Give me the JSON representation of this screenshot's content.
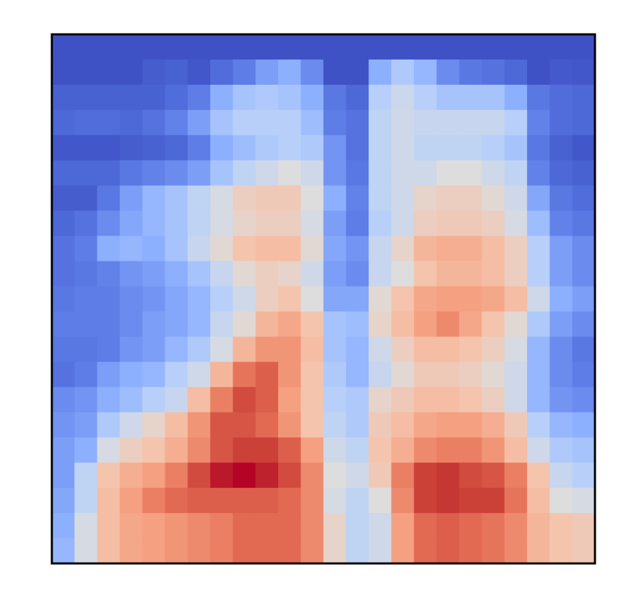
{
  "chart_data": {
    "type": "heatmap",
    "title": "",
    "xlabel": "",
    "ylabel": "",
    "colormap": "coolwarm",
    "colorbar": false,
    "ticks": false,
    "vmin": 0,
    "vmax": 1,
    "rows": 21,
    "cols": 24,
    "values": [
      [
        0.02,
        0.02,
        0.02,
        0.02,
        0.02,
        0.02,
        0.02,
        0.02,
        0.02,
        0.02,
        0.02,
        0.02,
        0.02,
        0.02,
        0.02,
        0.02,
        0.02,
        0.02,
        0.02,
        0.02,
        0.02,
        0.02,
        0.02,
        0.02
      ],
      [
        0.02,
        0.02,
        0.02,
        0.02,
        0.06,
        0.08,
        0.04,
        0.12,
        0.18,
        0.26,
        0.3,
        0.22,
        0.02,
        0.02,
        0.3,
        0.38,
        0.32,
        0.22,
        0.16,
        0.14,
        0.1,
        0.02,
        0.05,
        0.04
      ],
      [
        0.08,
        0.08,
        0.08,
        0.08,
        0.08,
        0.12,
        0.18,
        0.3,
        0.36,
        0.38,
        0.36,
        0.3,
        0.16,
        0.1,
        0.4,
        0.45,
        0.4,
        0.36,
        0.36,
        0.36,
        0.3,
        0.16,
        0.12,
        0.1
      ],
      [
        0.1,
        0.12,
        0.12,
        0.1,
        0.14,
        0.2,
        0.26,
        0.36,
        0.4,
        0.4,
        0.4,
        0.34,
        0.18,
        0.14,
        0.42,
        0.46,
        0.44,
        0.44,
        0.44,
        0.44,
        0.4,
        0.2,
        0.12,
        0.1
      ],
      [
        0.04,
        0.04,
        0.04,
        0.06,
        0.08,
        0.1,
        0.18,
        0.3,
        0.34,
        0.38,
        0.4,
        0.38,
        0.24,
        0.14,
        0.42,
        0.46,
        0.42,
        0.42,
        0.42,
        0.4,
        0.36,
        0.16,
        0.08,
        0.04
      ],
      [
        0.1,
        0.1,
        0.1,
        0.16,
        0.2,
        0.22,
        0.26,
        0.36,
        0.42,
        0.46,
        0.5,
        0.46,
        0.24,
        0.16,
        0.42,
        0.46,
        0.46,
        0.5,
        0.5,
        0.46,
        0.42,
        0.2,
        0.1,
        0.08
      ],
      [
        0.06,
        0.06,
        0.16,
        0.26,
        0.32,
        0.36,
        0.42,
        0.48,
        0.56,
        0.58,
        0.58,
        0.5,
        0.3,
        0.2,
        0.42,
        0.46,
        0.54,
        0.56,
        0.56,
        0.52,
        0.46,
        0.28,
        0.16,
        0.12
      ],
      [
        0.1,
        0.14,
        0.22,
        0.28,
        0.32,
        0.36,
        0.42,
        0.48,
        0.54,
        0.56,
        0.56,
        0.48,
        0.26,
        0.18,
        0.4,
        0.46,
        0.56,
        0.58,
        0.58,
        0.56,
        0.48,
        0.34,
        0.2,
        0.16
      ],
      [
        0.14,
        0.18,
        0.3,
        0.32,
        0.3,
        0.36,
        0.44,
        0.52,
        0.6,
        0.62,
        0.62,
        0.52,
        0.28,
        0.24,
        0.44,
        0.54,
        0.64,
        0.66,
        0.66,
        0.62,
        0.56,
        0.4,
        0.26,
        0.22
      ],
      [
        0.14,
        0.16,
        0.2,
        0.24,
        0.26,
        0.3,
        0.36,
        0.44,
        0.52,
        0.56,
        0.54,
        0.46,
        0.26,
        0.22,
        0.44,
        0.5,
        0.6,
        0.64,
        0.64,
        0.62,
        0.56,
        0.4,
        0.26,
        0.22
      ],
      [
        0.16,
        0.18,
        0.18,
        0.22,
        0.24,
        0.28,
        0.32,
        0.4,
        0.46,
        0.56,
        0.6,
        0.5,
        0.28,
        0.28,
        0.52,
        0.6,
        0.68,
        0.7,
        0.7,
        0.68,
        0.62,
        0.46,
        0.3,
        0.26
      ],
      [
        0.18,
        0.18,
        0.18,
        0.22,
        0.26,
        0.28,
        0.32,
        0.44,
        0.52,
        0.64,
        0.68,
        0.6,
        0.36,
        0.34,
        0.54,
        0.62,
        0.7,
        0.74,
        0.68,
        0.6,
        0.52,
        0.38,
        0.26,
        0.22
      ],
      [
        0.16,
        0.16,
        0.18,
        0.24,
        0.26,
        0.32,
        0.38,
        0.48,
        0.64,
        0.72,
        0.72,
        0.62,
        0.36,
        0.32,
        0.46,
        0.56,
        0.62,
        0.62,
        0.6,
        0.56,
        0.48,
        0.32,
        0.22,
        0.16
      ],
      [
        0.14,
        0.18,
        0.26,
        0.3,
        0.32,
        0.4,
        0.46,
        0.64,
        0.78,
        0.82,
        0.72,
        0.6,
        0.38,
        0.32,
        0.44,
        0.52,
        0.58,
        0.58,
        0.56,
        0.52,
        0.46,
        0.32,
        0.22,
        0.18
      ],
      [
        0.22,
        0.24,
        0.3,
        0.34,
        0.4,
        0.44,
        0.62,
        0.76,
        0.86,
        0.82,
        0.7,
        0.6,
        0.4,
        0.38,
        0.54,
        0.58,
        0.62,
        0.62,
        0.6,
        0.56,
        0.46,
        0.32,
        0.24,
        0.22
      ],
      [
        0.24,
        0.26,
        0.38,
        0.46,
        0.54,
        0.62,
        0.72,
        0.84,
        0.84,
        0.8,
        0.72,
        0.6,
        0.42,
        0.38,
        0.58,
        0.62,
        0.68,
        0.7,
        0.7,
        0.66,
        0.58,
        0.4,
        0.32,
        0.3
      ],
      [
        0.26,
        0.3,
        0.48,
        0.56,
        0.6,
        0.66,
        0.74,
        0.84,
        0.88,
        0.88,
        0.82,
        0.7,
        0.46,
        0.42,
        0.6,
        0.66,
        0.74,
        0.76,
        0.76,
        0.72,
        0.62,
        0.46,
        0.38,
        0.36
      ],
      [
        0.26,
        0.42,
        0.6,
        0.66,
        0.7,
        0.76,
        0.86,
        0.96,
        1.0,
        0.94,
        0.86,
        0.74,
        0.5,
        0.46,
        0.58,
        0.76,
        0.88,
        0.9,
        0.86,
        0.84,
        0.76,
        0.6,
        0.44,
        0.4
      ],
      [
        0.28,
        0.42,
        0.62,
        0.7,
        0.76,
        0.8,
        0.82,
        0.82,
        0.82,
        0.82,
        0.8,
        0.74,
        0.48,
        0.42,
        0.5,
        0.74,
        0.88,
        0.9,
        0.88,
        0.88,
        0.78,
        0.62,
        0.5,
        0.48
      ],
      [
        0.3,
        0.48,
        0.62,
        0.68,
        0.7,
        0.72,
        0.74,
        0.76,
        0.8,
        0.8,
        0.8,
        0.74,
        0.54,
        0.42,
        0.46,
        0.7,
        0.8,
        0.82,
        0.8,
        0.78,
        0.74,
        0.64,
        0.6,
        0.58
      ],
      [
        0.32,
        0.48,
        0.62,
        0.68,
        0.7,
        0.72,
        0.74,
        0.76,
        0.8,
        0.8,
        0.8,
        0.74,
        0.54,
        0.42,
        0.46,
        0.7,
        0.8,
        0.82,
        0.8,
        0.78,
        0.74,
        0.64,
        0.6,
        0.58
      ]
    ]
  }
}
